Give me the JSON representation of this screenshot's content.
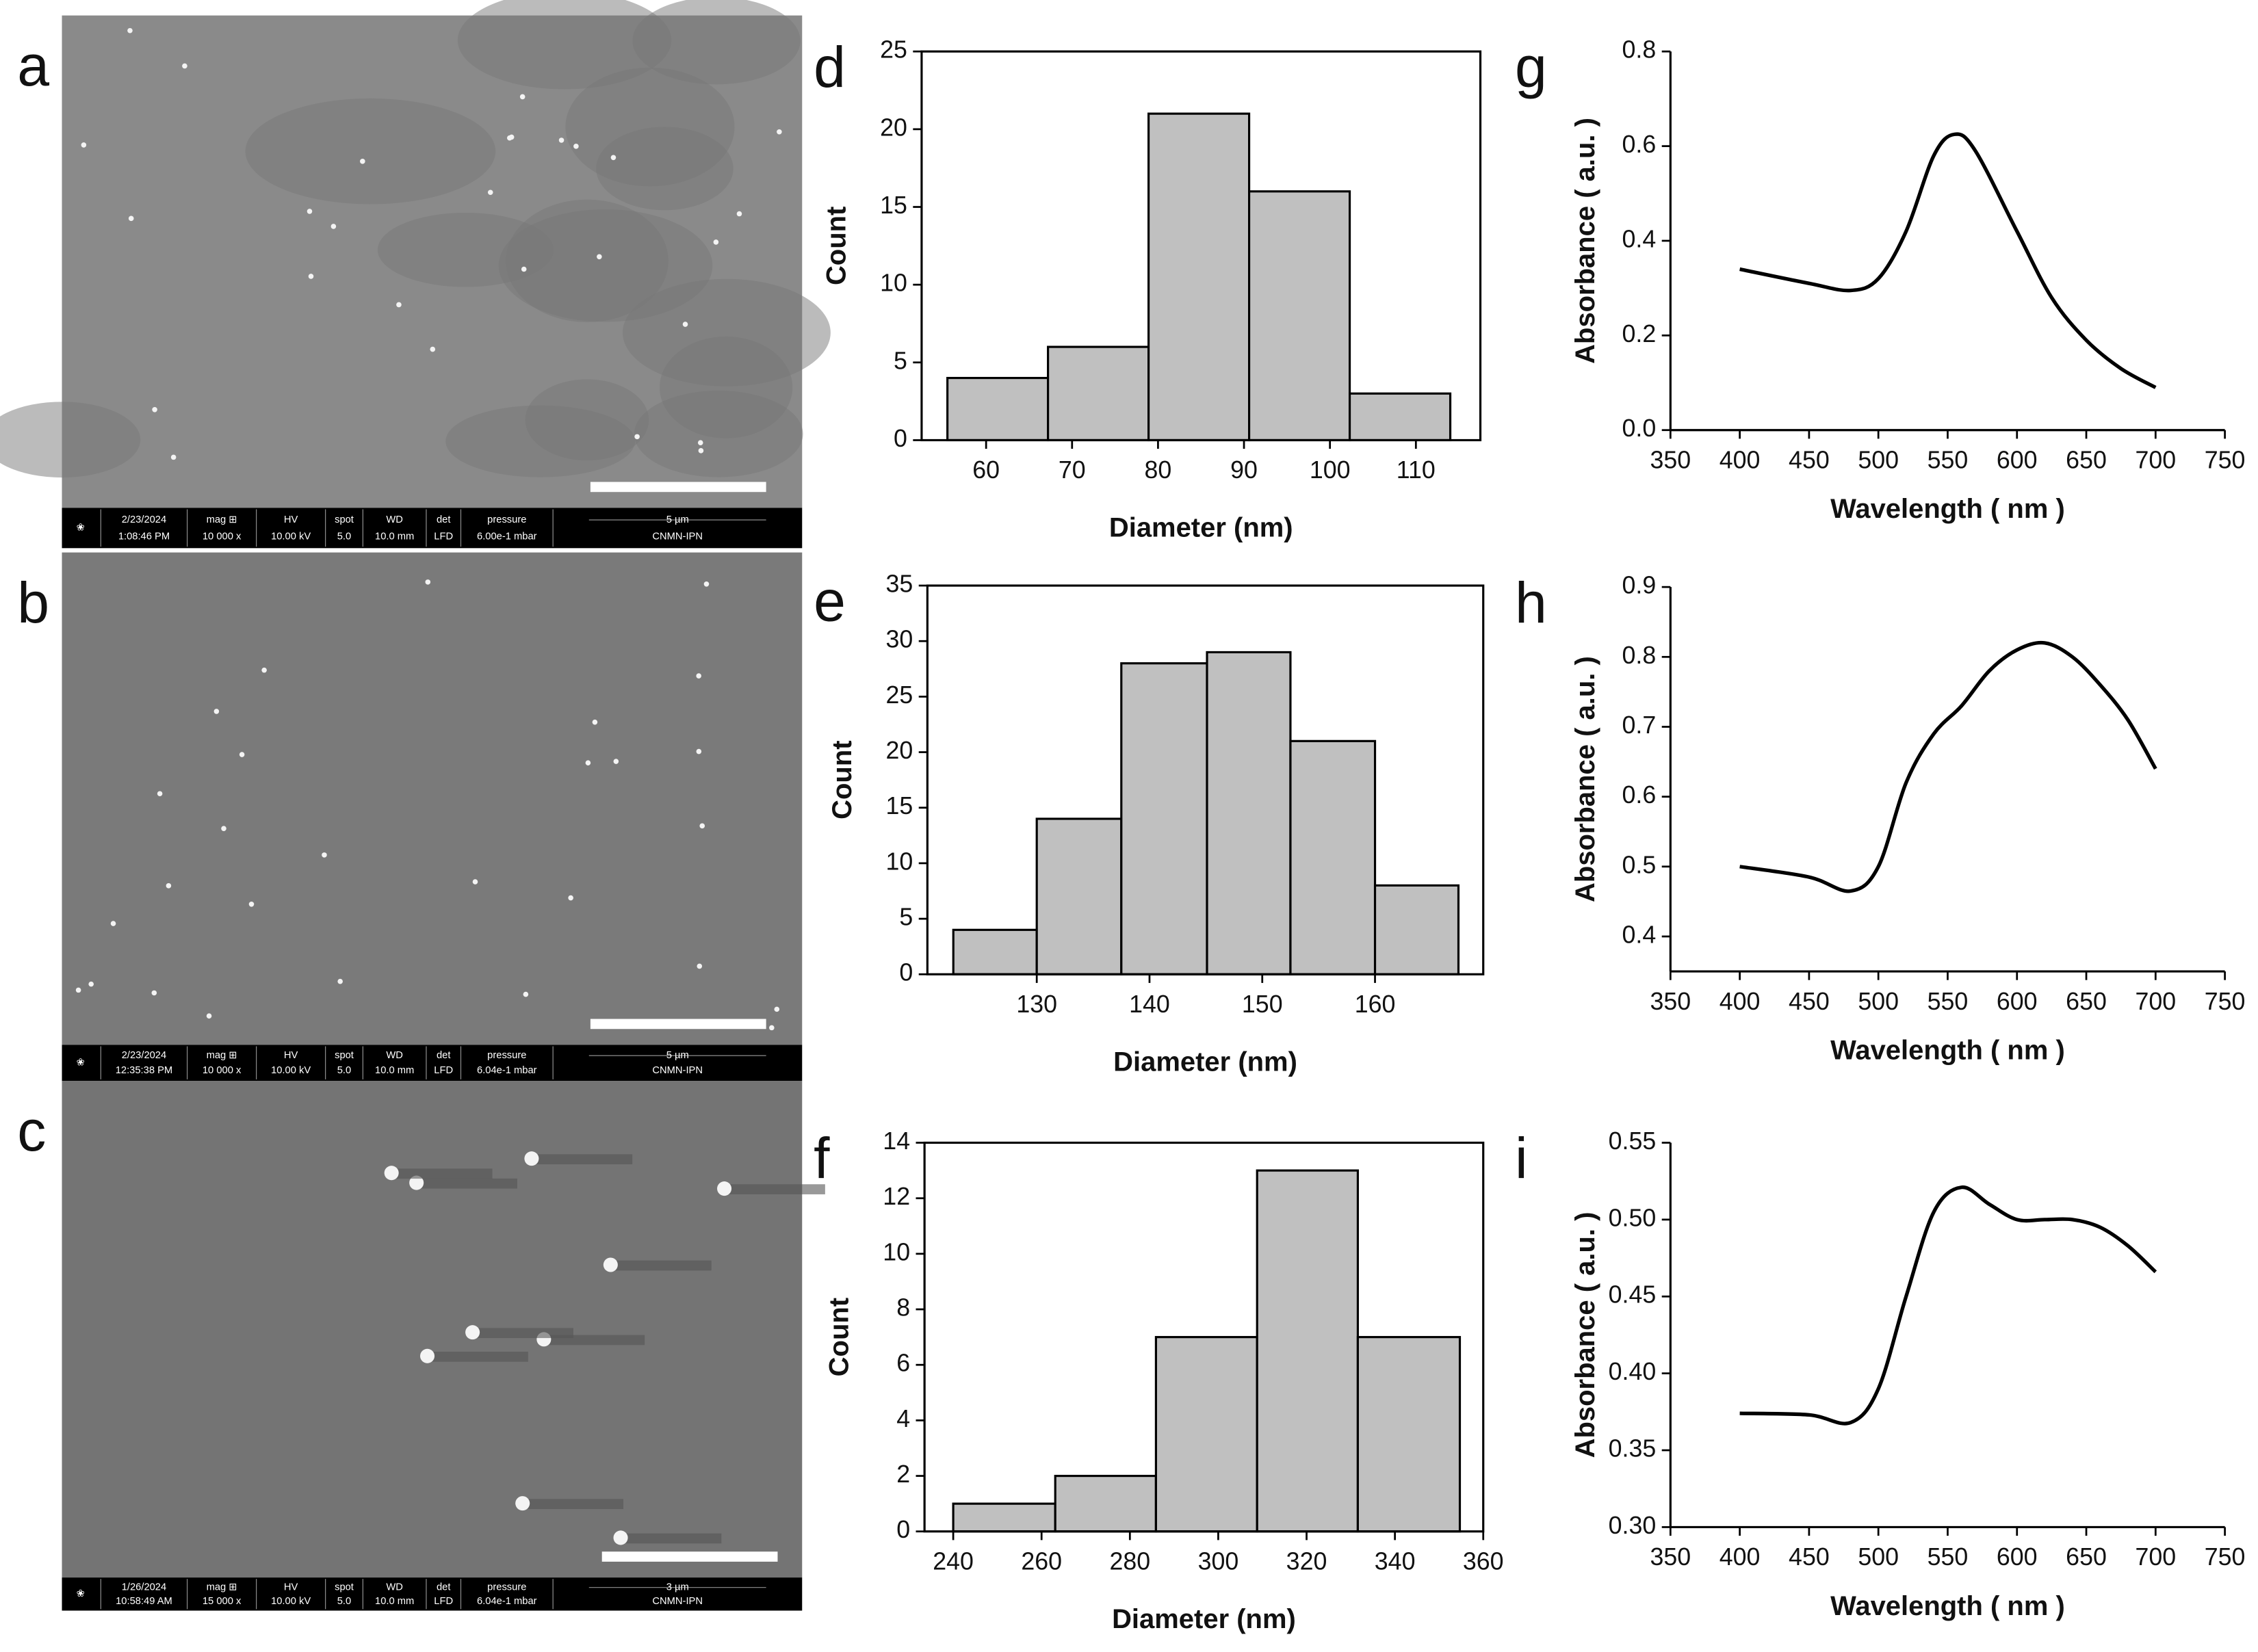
{
  "sem_panels": [
    {
      "label": "a",
      "info": [
        [
          "2/23/2024",
          "1:08:46 PM"
        ],
        [
          "mag ⊞",
          "10 000 x"
        ],
        [
          "HV",
          "10.00 kV"
        ],
        [
          "spot",
          "5.0"
        ],
        [
          "WD",
          "10.0 mm"
        ],
        [
          "det",
          "LFD"
        ],
        [
          "pressure",
          "6.00e-1 mbar"
        ],
        [
          "5 µm",
          "CNMN-IPN"
        ]
      ]
    },
    {
      "label": "b",
      "info": [
        [
          "2/23/2024",
          "12:35:38 PM"
        ],
        [
          "mag ⊞",
          "10 000 x"
        ],
        [
          "HV",
          "10.00 kV"
        ],
        [
          "spot",
          "5.0"
        ],
        [
          "WD",
          "10.0 mm"
        ],
        [
          "det",
          "LFD"
        ],
        [
          "pressure",
          "6.04e-1 mbar"
        ],
        [
          "5 µm",
          "CNMN-IPN"
        ]
      ]
    },
    {
      "label": "c",
      "info": [
        [
          "1/26/2024",
          "10:58:49 AM"
        ],
        [
          "mag ⊞",
          "15 000 x"
        ],
        [
          "HV",
          "10.00 kV"
        ],
        [
          "spot",
          "5.0"
        ],
        [
          "WD",
          "10.0 mm"
        ],
        [
          "det",
          "LFD"
        ],
        [
          "pressure",
          "6.04e-1 mbar"
        ],
        [
          "3 µm",
          "CNMN-IPN"
        ]
      ]
    }
  ],
  "chart_data": [
    {
      "type": "histogram",
      "label": "d",
      "x_label": "Diameter (nm)",
      "y_label": "Count",
      "color": "#c0c0c0",
      "bins": [
        55.5,
        67.2,
        78.9,
        90.6,
        102.3,
        114
      ],
      "values": [
        4,
        6,
        21,
        16,
        3
      ],
      "xlim": [
        52.5,
        117.5
      ],
      "xticks": [
        60,
        70,
        80,
        90,
        100,
        110
      ],
      "ylim": [
        0,
        25
      ],
      "yticks": [
        0,
        5,
        10,
        15,
        20,
        25
      ]
    },
    {
      "type": "histogram",
      "label": "e",
      "x_label": "Diameter (nm)",
      "y_label": "Count",
      "color": "#c0c0c0",
      "bins": [
        122.6,
        130,
        137.5,
        145.1,
        152.5,
        160,
        167.4
      ],
      "values": [
        4,
        14,
        28,
        29,
        21,
        8
      ],
      "xlim": [
        120.3,
        169.6
      ],
      "xticks": [
        130,
        140,
        150,
        160
      ],
      "ylim": [
        0,
        35
      ],
      "yticks": [
        0,
        5,
        10,
        15,
        20,
        25,
        30,
        35
      ]
    },
    {
      "type": "histogram",
      "label": "f",
      "x_label": "Diameter (nm)",
      "y_label": "Count",
      "color": "#c0c0c0",
      "bins": [
        240,
        263.1,
        285.9,
        308.8,
        331.6,
        354.7
      ],
      "values": [
        1,
        2,
        7,
        13,
        7
      ],
      "xlim": [
        233.5,
        360
      ],
      "xticks": [
        240,
        260,
        280,
        300,
        320,
        340,
        360
      ],
      "ylim": [
        0,
        14
      ],
      "yticks": [
        0,
        2,
        4,
        6,
        8,
        10,
        12,
        14
      ]
    },
    {
      "type": "line",
      "label": "g",
      "x_label": "Wavelength ( nm )",
      "y_label": "Absorbance ( a.u. )",
      "color": "#000000",
      "x": [
        400,
        450,
        480,
        500,
        520,
        540,
        555,
        570,
        600,
        625,
        650,
        675,
        700
      ],
      "values": [
        0.34,
        0.31,
        0.295,
        0.32,
        0.42,
        0.58,
        0.625,
        0.59,
        0.42,
        0.28,
        0.19,
        0.13,
        0.09
      ],
      "xlim": [
        350,
        750
      ],
      "xticks": [
        350,
        400,
        450,
        500,
        550,
        600,
        650,
        700,
        750
      ],
      "ylim": [
        0,
        0.8
      ],
      "yticks": [
        {
          "value": 0,
          "label": "0.0"
        },
        0.2,
        0.4,
        0.6,
        0.8
      ]
    },
    {
      "type": "line",
      "label": "h",
      "x_label": "Wavelength ( nm )",
      "y_label": "Absorbance ( a.u. )",
      "color": "#000000",
      "x": [
        400,
        450,
        480,
        500,
        520,
        540,
        560,
        580,
        600,
        620,
        640,
        660,
        680,
        700
      ],
      "values": [
        0.5,
        0.485,
        0.465,
        0.5,
        0.62,
        0.69,
        0.73,
        0.78,
        0.81,
        0.82,
        0.8,
        0.76,
        0.71,
        0.64
      ],
      "xlim": [
        350,
        750
      ],
      "xticks": [
        350,
        400,
        450,
        500,
        550,
        600,
        650,
        700,
        750
      ],
      "ylim": [
        0.35,
        0.9
      ],
      "yticks": [
        0.4,
        0.5,
        0.6,
        0.7,
        0.8,
        0.9
      ]
    },
    {
      "type": "line",
      "label": "i",
      "x_label": "Wavelength ( nm )",
      "y_label": "Absorbance ( a.u. )",
      "color": "#000000",
      "x": [
        400,
        450,
        480,
        500,
        520,
        540,
        560,
        580,
        600,
        620,
        640,
        660,
        680,
        700
      ],
      "values": [
        0.374,
        0.373,
        0.368,
        0.39,
        0.45,
        0.505,
        0.521,
        0.51,
        0.5,
        0.5,
        0.5,
        0.495,
        0.483,
        0.466
      ],
      "xlim": [
        350,
        750
      ],
      "xticks": [
        350,
        400,
        450,
        500,
        550,
        600,
        650,
        700,
        750
      ],
      "ylim": [
        0.3,
        0.55
      ],
      "yticks": [
        {
          "value": 0.3,
          "label": "0.30"
        },
        {
          "value": 0.35,
          "label": "0.35"
        },
        {
          "value": 0.4,
          "label": "0.40"
        },
        {
          "value": 0.45,
          "label": "0.45"
        },
        {
          "value": 0.5,
          "label": "0.50"
        },
        {
          "value": 0.55,
          "label": "0.55"
        }
      ]
    }
  ]
}
